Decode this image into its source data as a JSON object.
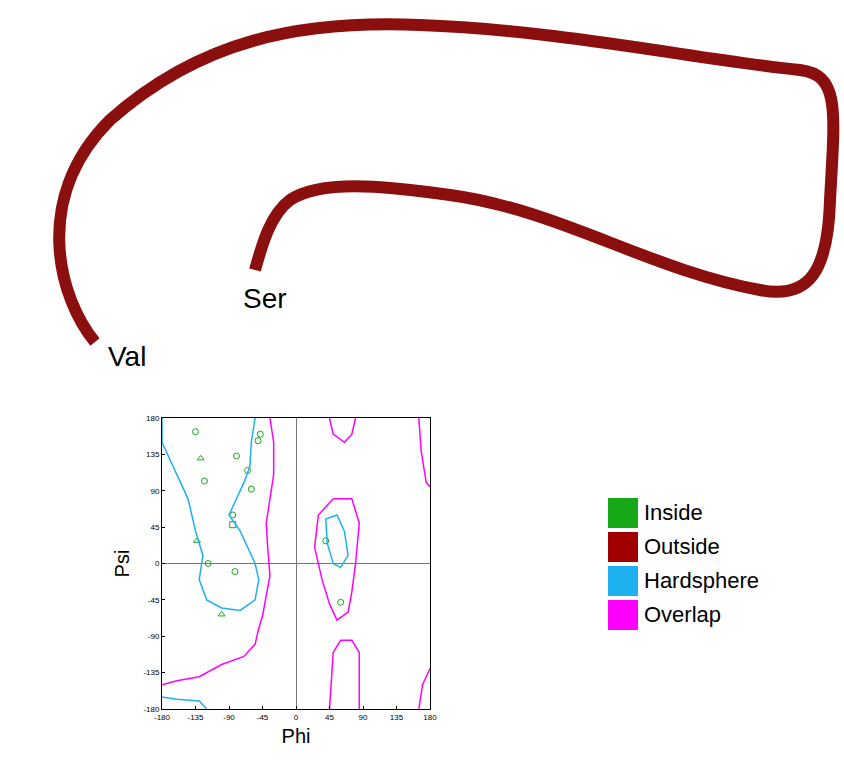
{
  "ribbon": {
    "start_label": "Val",
    "end_label": "Ser",
    "color": "#8b0f0f"
  },
  "chart_data": {
    "type": "scatter",
    "x_label": "Phi",
    "y_label": "Psi",
    "xlim": [
      -180,
      180
    ],
    "ylim": [
      -180,
      180
    ],
    "xticks": [
      -180,
      -135,
      -90,
      -45,
      0,
      45,
      90,
      135,
      180
    ],
    "yticks": [
      -180,
      -135,
      -90,
      -45,
      0,
      45,
      90,
      135,
      180
    ],
    "grid": false,
    "legend": "right",
    "series": [
      {
        "name": "Inside",
        "type": "scatter",
        "marker": "circle",
        "color": "#17a817",
        "x": [
          -135,
          -123,
          -80,
          -65,
          -60,
          -51,
          -48,
          -85,
          -118,
          -82,
          40,
          60
        ],
        "values": [
          163,
          102,
          133,
          115,
          92,
          152,
          160,
          60,
          0,
          -10,
          28,
          -48
        ]
      },
      {
        "name": "Inside",
        "type": "scatter",
        "marker": "triangle",
        "color": "#17a817",
        "x": [
          -128,
          -133,
          -100
        ],
        "values": [
          130,
          28,
          -63
        ]
      },
      {
        "name": "Inside",
        "type": "scatter",
        "marker": "square",
        "color": "#17a817",
        "x": [
          -85
        ],
        "values": [
          48
        ]
      },
      {
        "name": "Outside",
        "type": "scatter",
        "marker": "circle",
        "color": "#a00000",
        "x": [],
        "values": []
      },
      {
        "name": "Hardsphere",
        "type": "line",
        "color": "#1fb0f0",
        "x": [
          -180,
          -180,
          -160,
          -145,
          -135,
          -125,
          -130,
          -120,
          -100,
          -75,
          -55,
          -50,
          -55,
          -65,
          -75,
          -90,
          -80,
          -70,
          -62,
          -60,
          -55,
          null,
          40,
          55,
          65,
          70,
          60,
          50,
          42,
          40,
          null,
          -180,
          -160,
          -130,
          -120
        ],
        "values": [
          180,
          150,
          110,
          80,
          40,
          10,
          -20,
          -45,
          -55,
          -58,
          -45,
          -20,
          0,
          20,
          40,
          60,
          80,
          100,
          120,
          150,
          180,
          null,
          55,
          60,
          40,
          10,
          -5,
          0,
          25,
          55,
          null,
          -165,
          -168,
          -170,
          -180
        ]
      },
      {
        "name": "Overlap",
        "type": "line",
        "color": "#ff00ff",
        "x": [
          -180,
          -160,
          -130,
          -100,
          -70,
          -55,
          -50,
          -45,
          -40,
          -35,
          -38,
          -40,
          -35,
          -30,
          -30,
          -35,
          null,
          50,
          75,
          85,
          80,
          75,
          70,
          55,
          45,
          35,
          25,
          30,
          50,
          null,
          45,
          50,
          65,
          75,
          80,
          null,
          45,
          50,
          60,
          75,
          85,
          85,
          null,
          165,
          168,
          175,
          180,
          null,
          180,
          170,
          165
        ],
        "values": [
          -150,
          -145,
          -140,
          -125,
          -115,
          -100,
          -80,
          -65,
          -40,
          -15,
          20,
          50,
          80,
          110,
          150,
          180,
          null,
          80,
          80,
          50,
          0,
          -35,
          -60,
          -70,
          -50,
          -20,
          20,
          60,
          80,
          null,
          180,
          160,
          150,
          160,
          180,
          null,
          -180,
          -110,
          -95,
          -95,
          -110,
          -180,
          null,
          180,
          140,
          100,
          95,
          null,
          -130,
          -150,
          -180
        ]
      }
    ]
  }
}
